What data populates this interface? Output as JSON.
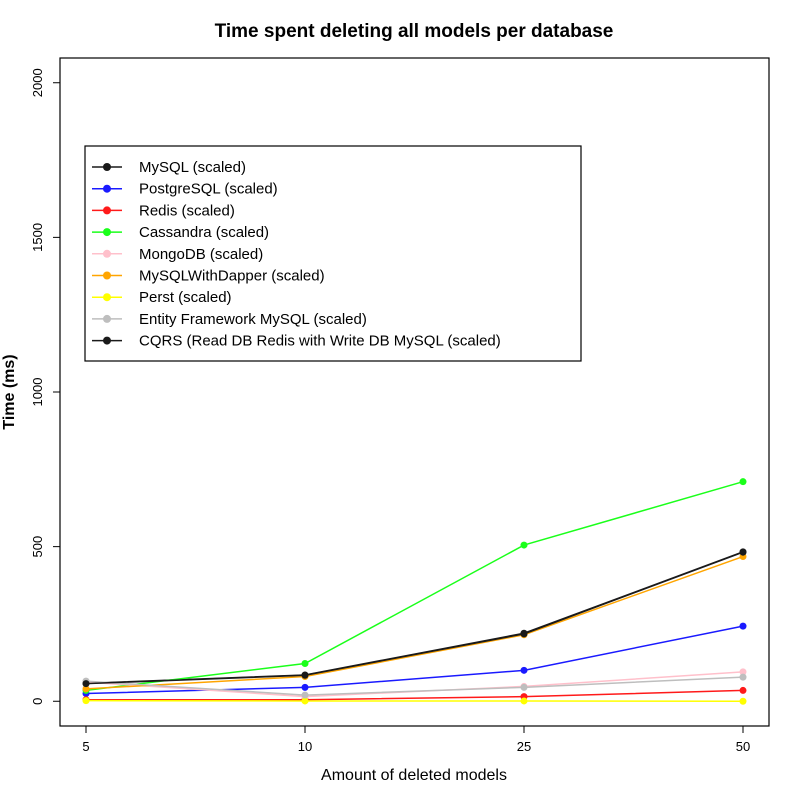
{
  "chart_data": {
    "type": "line",
    "title": "Time spent deleting all models per database",
    "xlabel": "Amount of deleted models",
    "ylabel": "Time (ms)",
    "categories": [
      "5",
      "10",
      "25",
      "50"
    ],
    "yticks": [
      "0",
      "500",
      "1000",
      "1500",
      "2000"
    ],
    "ylim": [
      -80,
      2080
    ],
    "grid": false,
    "legend_position": "top-left",
    "series": [
      {
        "name": "MySQL (scaled)",
        "color": "#1a1a1a",
        "values": [
          58,
          85,
          220,
          483
        ]
      },
      {
        "name": "PostgreSQL (scaled)",
        "color": "#1a1aff",
        "values": [
          25,
          45,
          100,
          243
        ]
      },
      {
        "name": "Redis (scaled)",
        "color": "#ff1a1a",
        "values": [
          5,
          5,
          15,
          35
        ]
      },
      {
        "name": "Cassandra (scaled)",
        "color": "#1aff1a",
        "values": [
          35,
          122,
          505,
          710
        ]
      },
      {
        "name": "MongoDB (scaled)",
        "color": "#ffc0cb",
        "values": [
          62,
          15,
          48,
          95
        ]
      },
      {
        "name": "MySQLWithDapper (scaled)",
        "color": "#ffa500",
        "values": [
          40,
          80,
          215,
          468
        ]
      },
      {
        "name": "Perst (scaled)",
        "color": "#ffff00",
        "values": [
          2,
          1,
          1,
          0
        ]
      },
      {
        "name": "Entity Framework MySQL (scaled)",
        "color": "#bebebe",
        "values": [
          65,
          20,
          45,
          78
        ]
      },
      {
        "name": "CQRS (Read DB Redis with Write DB MySQL (scaled)",
        "color": "#1a1a1a",
        "values": [
          57,
          84,
          218,
          482
        ]
      }
    ]
  }
}
